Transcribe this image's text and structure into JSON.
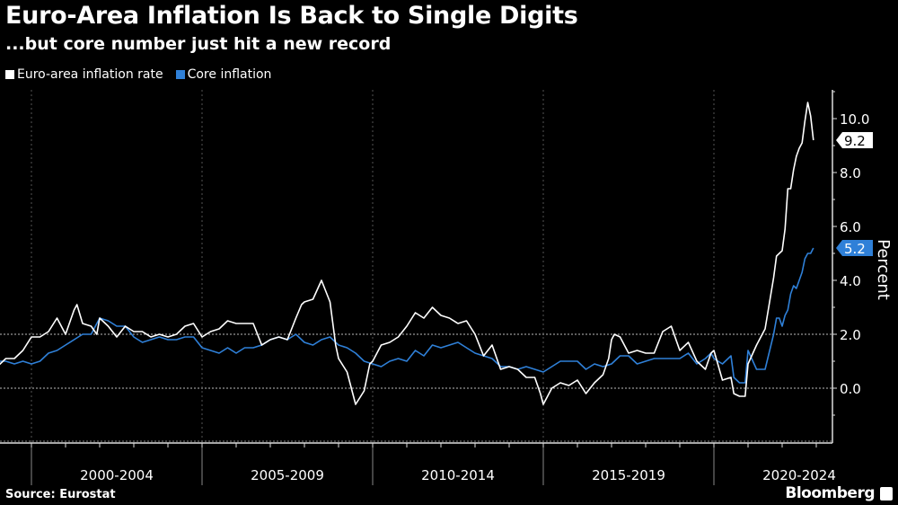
{
  "chart_data": {
    "type": "line",
    "title": "Euro-Area Inflation Is Back to Single Digits",
    "subtitle": "...but core number just hit a new record",
    "ylabel": "Percent",
    "xlabel": "",
    "ylim": [
      -2,
      11
    ],
    "yticks": [
      "10.0",
      "8.0",
      "6.0",
      "4.0",
      "2.0",
      "0.0"
    ],
    "xtick_labels": [
      "2000-2004",
      "2005-2009",
      "2010-2014",
      "2015-2019",
      "2020-2024"
    ],
    "grid": "dotted lines at 0 and 2, and at period boundaries",
    "legend_placement": "top-left",
    "source": "Source: Eurostat",
    "brand": "Bloomberg",
    "series": [
      {
        "name": "Euro-area inflation rate",
        "color": "#ffffff",
        "last_label": "9.2",
        "points": [
          [
            "1999-01",
            0.8
          ],
          [
            "1999-04",
            1.1
          ],
          [
            "1999-07",
            1.1
          ],
          [
            "1999-10",
            1.4
          ],
          [
            "2000-01",
            1.9
          ],
          [
            "2000-04",
            1.9
          ],
          [
            "2000-07",
            2.1
          ],
          [
            "2000-10",
            2.6
          ],
          [
            "2001-01",
            2.0
          ],
          [
            "2001-04",
            2.9
          ],
          [
            "2001-05",
            3.1
          ],
          [
            "2001-07",
            2.4
          ],
          [
            "2001-10",
            2.3
          ],
          [
            "2001-12",
            2.0
          ],
          [
            "2002-01",
            2.6
          ],
          [
            "2002-04",
            2.3
          ],
          [
            "2002-07",
            1.9
          ],
          [
            "2002-10",
            2.3
          ],
          [
            "2003-01",
            2.1
          ],
          [
            "2003-04",
            2.1
          ],
          [
            "2003-07",
            1.9
          ],
          [
            "2003-10",
            2.0
          ],
          [
            "2004-01",
            1.9
          ],
          [
            "2004-04",
            2.0
          ],
          [
            "2004-07",
            2.3
          ],
          [
            "2004-10",
            2.4
          ],
          [
            "2005-01",
            1.9
          ],
          [
            "2005-04",
            2.1
          ],
          [
            "2005-07",
            2.2
          ],
          [
            "2005-10",
            2.5
          ],
          [
            "2006-01",
            2.4
          ],
          [
            "2006-04",
            2.4
          ],
          [
            "2006-07",
            2.4
          ],
          [
            "2006-10",
            1.6
          ],
          [
            "2007-01",
            1.8
          ],
          [
            "2007-04",
            1.9
          ],
          [
            "2007-07",
            1.8
          ],
          [
            "2007-10",
            2.6
          ],
          [
            "2007-12",
            3.1
          ],
          [
            "2008-01",
            3.2
          ],
          [
            "2008-04",
            3.3
          ],
          [
            "2008-07",
            4.0
          ],
          [
            "2008-10",
            3.2
          ],
          [
            "2008-12",
            1.6
          ],
          [
            "2009-01",
            1.1
          ],
          [
            "2009-04",
            0.6
          ],
          [
            "2009-07",
            -0.6
          ],
          [
            "2009-10",
            -0.1
          ],
          [
            "2009-12",
            0.9
          ],
          [
            "2010-01",
            1.0
          ],
          [
            "2010-04",
            1.6
          ],
          [
            "2010-07",
            1.7
          ],
          [
            "2010-10",
            1.9
          ],
          [
            "2011-01",
            2.3
          ],
          [
            "2011-04",
            2.8
          ],
          [
            "2011-07",
            2.6
          ],
          [
            "2011-10",
            3.0
          ],
          [
            "2012-01",
            2.7
          ],
          [
            "2012-04",
            2.6
          ],
          [
            "2012-07",
            2.4
          ],
          [
            "2012-10",
            2.5
          ],
          [
            "2013-01",
            2.0
          ],
          [
            "2013-04",
            1.2
          ],
          [
            "2013-07",
            1.6
          ],
          [
            "2013-10",
            0.7
          ],
          [
            "2014-01",
            0.8
          ],
          [
            "2014-04",
            0.7
          ],
          [
            "2014-07",
            0.4
          ],
          [
            "2014-10",
            0.4
          ],
          [
            "2014-12",
            -0.2
          ],
          [
            "2015-01",
            -0.6
          ],
          [
            "2015-04",
            0.0
          ],
          [
            "2015-07",
            0.2
          ],
          [
            "2015-10",
            0.1
          ],
          [
            "2016-01",
            0.3
          ],
          [
            "2016-04",
            -0.2
          ],
          [
            "2016-07",
            0.2
          ],
          [
            "2016-10",
            0.5
          ],
          [
            "2016-12",
            1.1
          ],
          [
            "2017-01",
            1.8
          ],
          [
            "2017-02",
            2.0
          ],
          [
            "2017-04",
            1.9
          ],
          [
            "2017-07",
            1.3
          ],
          [
            "2017-10",
            1.4
          ],
          [
            "2018-01",
            1.3
          ],
          [
            "2018-04",
            1.3
          ],
          [
            "2018-07",
            2.1
          ],
          [
            "2018-10",
            2.3
          ],
          [
            "2019-01",
            1.4
          ],
          [
            "2019-04",
            1.7
          ],
          [
            "2019-07",
            1.0
          ],
          [
            "2019-10",
            0.7
          ],
          [
            "2019-12",
            1.3
          ],
          [
            "2020-01",
            1.4
          ],
          [
            "2020-04",
            0.3
          ],
          [
            "2020-07",
            0.4
          ],
          [
            "2020-08",
            -0.2
          ],
          [
            "2020-10",
            -0.3
          ],
          [
            "2020-12",
            -0.3
          ],
          [
            "2021-01",
            0.9
          ],
          [
            "2021-04",
            1.6
          ],
          [
            "2021-07",
            2.2
          ],
          [
            "2021-10",
            4.1
          ],
          [
            "2021-11",
            4.9
          ],
          [
            "2021-12",
            5.0
          ],
          [
            "2022-01",
            5.1
          ],
          [
            "2022-02",
            5.9
          ],
          [
            "2022-03",
            7.4
          ],
          [
            "2022-04",
            7.4
          ],
          [
            "2022-05",
            8.1
          ],
          [
            "2022-06",
            8.6
          ],
          [
            "2022-07",
            8.9
          ],
          [
            "2022-08",
            9.1
          ],
          [
            "2022-09",
            9.9
          ],
          [
            "2022-10",
            10.6
          ],
          [
            "2022-11",
            10.1
          ],
          [
            "2022-12",
            9.2
          ]
        ]
      },
      {
        "name": "Core inflation",
        "color": "#2f80d8",
        "last_label": "5.2",
        "points": [
          [
            "1999-01",
            1.0
          ],
          [
            "1999-04",
            1.0
          ],
          [
            "1999-07",
            0.9
          ],
          [
            "1999-10",
            1.0
          ],
          [
            "2000-01",
            0.9
          ],
          [
            "2000-04",
            1.0
          ],
          [
            "2000-07",
            1.3
          ],
          [
            "2000-10",
            1.4
          ],
          [
            "2001-01",
            1.6
          ],
          [
            "2001-04",
            1.8
          ],
          [
            "2001-07",
            2.0
          ],
          [
            "2001-10",
            2.0
          ],
          [
            "2002-01",
            2.6
          ],
          [
            "2002-04",
            2.5
          ],
          [
            "2002-07",
            2.3
          ],
          [
            "2002-10",
            2.3
          ],
          [
            "2003-01",
            1.9
          ],
          [
            "2003-04",
            1.7
          ],
          [
            "2003-07",
            1.8
          ],
          [
            "2003-10",
            1.9
          ],
          [
            "2004-01",
            1.8
          ],
          [
            "2004-04",
            1.8
          ],
          [
            "2004-07",
            1.9
          ],
          [
            "2004-10",
            1.9
          ],
          [
            "2005-01",
            1.5
          ],
          [
            "2005-04",
            1.4
          ],
          [
            "2005-07",
            1.3
          ],
          [
            "2005-10",
            1.5
          ],
          [
            "2006-01",
            1.3
          ],
          [
            "2006-04",
            1.5
          ],
          [
            "2006-07",
            1.5
          ],
          [
            "2006-10",
            1.6
          ],
          [
            "2007-01",
            1.8
          ],
          [
            "2007-04",
            1.9
          ],
          [
            "2007-07",
            1.8
          ],
          [
            "2007-10",
            2.0
          ],
          [
            "2008-01",
            1.7
          ],
          [
            "2008-04",
            1.6
          ],
          [
            "2008-07",
            1.8
          ],
          [
            "2008-10",
            1.9
          ],
          [
            "2009-01",
            1.6
          ],
          [
            "2009-04",
            1.5
          ],
          [
            "2009-07",
            1.3
          ],
          [
            "2009-10",
            1.0
          ],
          [
            "2010-01",
            0.9
          ],
          [
            "2010-04",
            0.8
          ],
          [
            "2010-07",
            1.0
          ],
          [
            "2010-10",
            1.1
          ],
          [
            "2011-01",
            1.0
          ],
          [
            "2011-04",
            1.4
          ],
          [
            "2011-07",
            1.2
          ],
          [
            "2011-10",
            1.6
          ],
          [
            "2012-01",
            1.5
          ],
          [
            "2012-04",
            1.6
          ],
          [
            "2012-07",
            1.7
          ],
          [
            "2012-10",
            1.5
          ],
          [
            "2013-01",
            1.3
          ],
          [
            "2013-04",
            1.2
          ],
          [
            "2013-07",
            1.1
          ],
          [
            "2013-10",
            0.8
          ],
          [
            "2014-01",
            0.8
          ],
          [
            "2014-04",
            0.7
          ],
          [
            "2014-07",
            0.8
          ],
          [
            "2014-10",
            0.7
          ],
          [
            "2015-01",
            0.6
          ],
          [
            "2015-04",
            0.8
          ],
          [
            "2015-07",
            1.0
          ],
          [
            "2015-10",
            1.0
          ],
          [
            "2016-01",
            1.0
          ],
          [
            "2016-04",
            0.7
          ],
          [
            "2016-07",
            0.9
          ],
          [
            "2016-10",
            0.8
          ],
          [
            "2017-01",
            0.9
          ],
          [
            "2017-04",
            1.2
          ],
          [
            "2017-07",
            1.2
          ],
          [
            "2017-10",
            0.9
          ],
          [
            "2018-01",
            1.0
          ],
          [
            "2018-04",
            1.1
          ],
          [
            "2018-07",
            1.1
          ],
          [
            "2018-10",
            1.1
          ],
          [
            "2019-01",
            1.1
          ],
          [
            "2019-04",
            1.3
          ],
          [
            "2019-07",
            0.9
          ],
          [
            "2019-10",
            1.1
          ],
          [
            "2019-12",
            1.3
          ],
          [
            "2020-01",
            1.1
          ],
          [
            "2020-04",
            0.9
          ],
          [
            "2020-07",
            1.2
          ],
          [
            "2020-08",
            0.4
          ],
          [
            "2020-10",
            0.2
          ],
          [
            "2020-12",
            0.2
          ],
          [
            "2021-01",
            1.4
          ],
          [
            "2021-04",
            0.7
          ],
          [
            "2021-07",
            0.7
          ],
          [
            "2021-10",
            2.0
          ],
          [
            "2021-11",
            2.6
          ],
          [
            "2021-12",
            2.6
          ],
          [
            "2022-01",
            2.3
          ],
          [
            "2022-02",
            2.7
          ],
          [
            "2022-03",
            2.9
          ],
          [
            "2022-04",
            3.5
          ],
          [
            "2022-05",
            3.8
          ],
          [
            "2022-06",
            3.7
          ],
          [
            "2022-07",
            4.0
          ],
          [
            "2022-08",
            4.3
          ],
          [
            "2022-09",
            4.8
          ],
          [
            "2022-10",
            5.0
          ],
          [
            "2022-11",
            5.0
          ],
          [
            "2022-12",
            5.2
          ]
        ]
      }
    ]
  }
}
